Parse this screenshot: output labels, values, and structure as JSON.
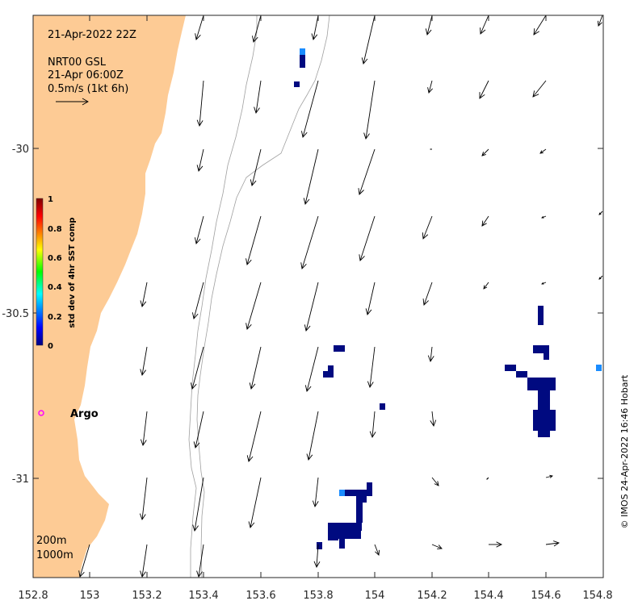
{
  "header": {
    "timestamp": "21-Apr-2022 22Z",
    "source": "NRT00 GSL",
    "source_time": "21-Apr 06:00Z",
    "scale_label": "0.5m/s (1kt 6h)"
  },
  "axes": {
    "x_ticks": [
      "152.8",
      "153",
      "153.2",
      "153.4",
      "153.6",
      "153.8",
      "154",
      "154.2",
      "154.4",
      "154.6",
      "154.8"
    ],
    "y_ticks": [
      "-30",
      "-30.5",
      "-31"
    ]
  },
  "colorbar": {
    "title": "std dev of 4hr SST comp",
    "ticks": [
      "1",
      "0.8",
      "0.6",
      "0.4",
      "0.2",
      "0"
    ]
  },
  "markers": {
    "argo_label": "Argo",
    "argo_color": "#ff00ff"
  },
  "contours": {
    "label_200": "200m",
    "label_1000": "1000m"
  },
  "credit": "© IMOS 24-Apr-2022 16:46 Hobart",
  "colors": {
    "land": "#fdcb95",
    "sst_low": "#000a80",
    "sst_mid": "#1a8cff",
    "contour": "#999999"
  }
}
